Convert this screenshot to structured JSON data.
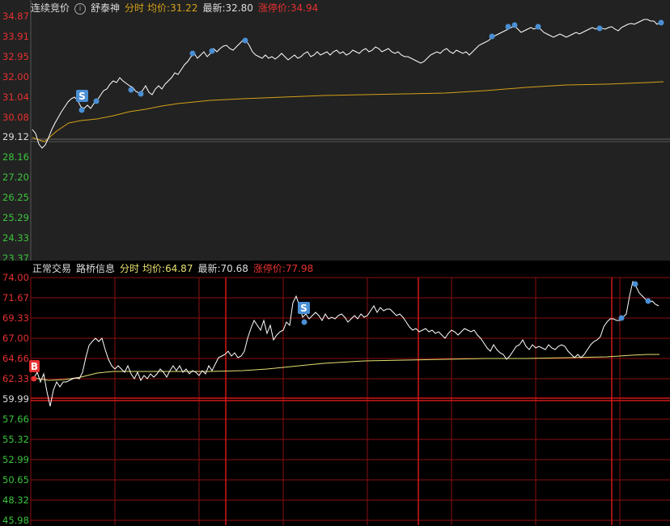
{
  "top": {
    "trading_status": "连续竞价",
    "stock_name": "舒泰神",
    "mode_label": "分时",
    "avg_label": "均价:",
    "avg_value": "31.22",
    "latest_label": "最新:",
    "latest_value": "32.80",
    "limit_label": "涨停价:",
    "limit_value": "34.94",
    "yticks": [
      "34.87",
      "33.91",
      "32.95",
      "32.00",
      "31.04",
      "30.08",
      "29.12",
      "28.16",
      "27.20",
      "26.25",
      "25.29",
      "24.33",
      "23.37"
    ],
    "sell_marker": "S",
    "colors": {
      "price_line": "#ffffff",
      "avg_line": "#d4a017",
      "marker": "#4a8fd4",
      "up": "#e83030",
      "down": "#3cc43c",
      "neutral": "#dddddd"
    }
  },
  "bottom": {
    "trading_status": "正常交易",
    "stock_name": "路桥信息",
    "mode_label": "分时",
    "avg_label": "均价:",
    "avg_value": "64.87",
    "latest_label": "最新:",
    "latest_value": "70.68",
    "limit_label": "涨停价:",
    "limit_value": "77.98",
    "yticks": [
      "74.00",
      "71.67",
      "69.33",
      "67.00",
      "64.66",
      "62.33",
      "59.99",
      "57.66",
      "55.32",
      "52.99",
      "50.65",
      "48.32",
      "45.98"
    ],
    "buy_marker": "B",
    "sell_marker": "S",
    "colors": {
      "price_line": "#ffffff",
      "avg_line": "#e8e070",
      "marker": "#4a8fd4",
      "grid": "#8b1010",
      "up": "#e83030",
      "down": "#3cc43c"
    }
  }
}
